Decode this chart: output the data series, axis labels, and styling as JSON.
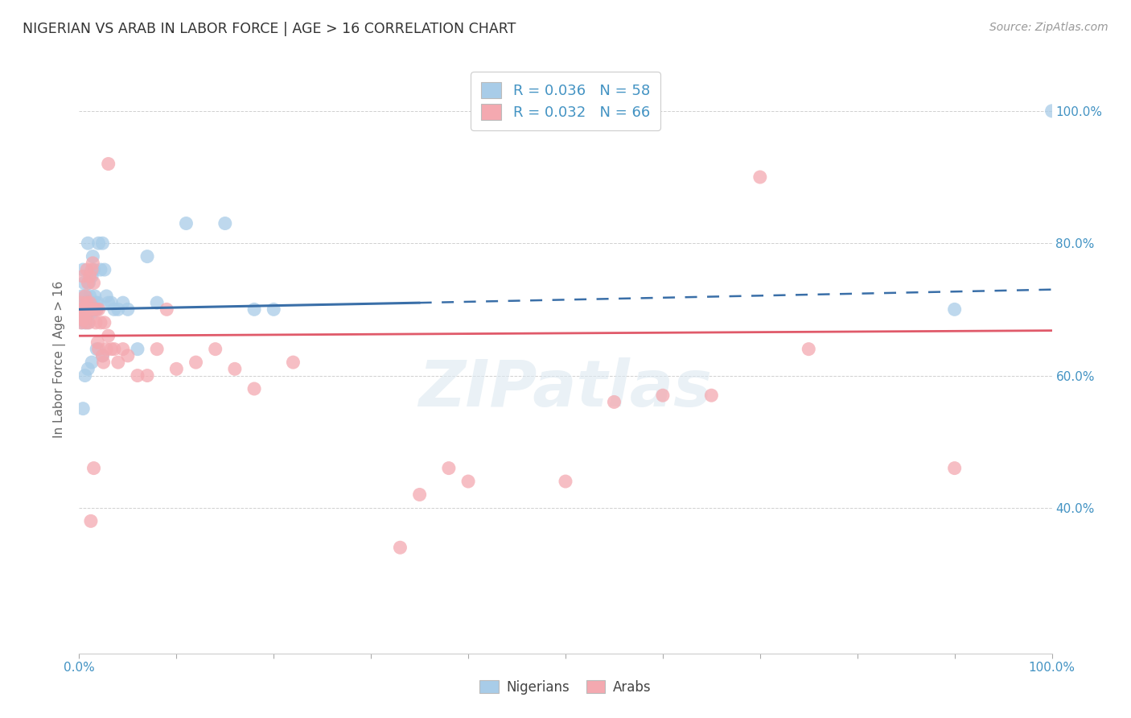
{
  "title": "NIGERIAN VS ARAB IN LABOR FORCE | AGE > 16 CORRELATION CHART",
  "source": "Source: ZipAtlas.com",
  "ylabel": "In Labor Force | Age > 16",
  "watermark": "ZIPatlas",
  "legend_label1": "R = 0.036   N = 58",
  "legend_label2": "R = 0.032   N = 66",
  "legend_name1": "Nigerians",
  "legend_name2": "Arabs",
  "blue_color": "#a8cce8",
  "pink_color": "#f4a9b0",
  "blue_line_color": "#3a6fa8",
  "pink_line_color": "#e05a6a",
  "right_tick_color": "#4393c3",
  "xmin": 0.0,
  "xmax": 1.0,
  "ymin": 0.18,
  "ymax": 1.07,
  "yticks": [
    0.4,
    0.6,
    0.8,
    1.0
  ],
  "ytick_labels": [
    "40.0%",
    "60.0%",
    "80.0%",
    "100.0%"
  ],
  "nig_trend_x0": 0.0,
  "nig_trend_x1": 0.35,
  "nig_trend_x2": 1.0,
  "nig_trend_y0": 0.7,
  "nig_trend_y1": 0.71,
  "nig_trend_y2": 0.73,
  "arab_trend_x0": 0.0,
  "arab_trend_x1": 1.0,
  "arab_trend_y0": 0.66,
  "arab_trend_y1": 0.668,
  "background_color": "#ffffff",
  "grid_color": "#d0d0d0",
  "nigerian_x": [
    0.001,
    0.002,
    0.002,
    0.003,
    0.003,
    0.004,
    0.004,
    0.005,
    0.005,
    0.006,
    0.006,
    0.007,
    0.007,
    0.008,
    0.008,
    0.009,
    0.009,
    0.01,
    0.01,
    0.011,
    0.011,
    0.012,
    0.012,
    0.013,
    0.013,
    0.014,
    0.014,
    0.015,
    0.016,
    0.017,
    0.018,
    0.019,
    0.02,
    0.022,
    0.024,
    0.026,
    0.028,
    0.03,
    0.033,
    0.036,
    0.04,
    0.045,
    0.05,
    0.06,
    0.07,
    0.08,
    0.11,
    0.15,
    0.18,
    0.2,
    0.024,
    0.018,
    0.013,
    0.009,
    0.006,
    0.004,
    0.9,
    1.0
  ],
  "nigerian_y": [
    0.7,
    0.71,
    0.695,
    0.72,
    0.68,
    0.76,
    0.695,
    0.74,
    0.7,
    0.71,
    0.68,
    0.72,
    0.7,
    0.71,
    0.695,
    0.8,
    0.68,
    0.74,
    0.7,
    0.72,
    0.695,
    0.71,
    0.7,
    0.75,
    0.695,
    0.78,
    0.7,
    0.76,
    0.72,
    0.71,
    0.7,
    0.71,
    0.8,
    0.76,
    0.8,
    0.76,
    0.72,
    0.71,
    0.71,
    0.7,
    0.7,
    0.71,
    0.7,
    0.64,
    0.78,
    0.71,
    0.83,
    0.83,
    0.7,
    0.7,
    0.63,
    0.64,
    0.62,
    0.61,
    0.6,
    0.55,
    0.7,
    1.0
  ],
  "arab_x": [
    0.001,
    0.002,
    0.002,
    0.003,
    0.003,
    0.004,
    0.004,
    0.005,
    0.005,
    0.006,
    0.006,
    0.007,
    0.007,
    0.008,
    0.008,
    0.009,
    0.009,
    0.01,
    0.01,
    0.011,
    0.011,
    0.012,
    0.013,
    0.014,
    0.015,
    0.016,
    0.017,
    0.018,
    0.019,
    0.02,
    0.022,
    0.024,
    0.026,
    0.028,
    0.03,
    0.033,
    0.036,
    0.04,
    0.045,
    0.05,
    0.06,
    0.07,
    0.08,
    0.09,
    0.1,
    0.12,
    0.14,
    0.16,
    0.18,
    0.22,
    0.03,
    0.025,
    0.02,
    0.015,
    0.012,
    0.6,
    0.65,
    0.7,
    0.75,
    0.9,
    0.35,
    0.4,
    0.5,
    0.55,
    0.38,
    0.33
  ],
  "arab_y": [
    0.7,
    0.68,
    0.71,
    0.695,
    0.685,
    0.7,
    0.75,
    0.695,
    0.685,
    0.7,
    0.72,
    0.7,
    0.68,
    0.76,
    0.71,
    0.695,
    0.74,
    0.68,
    0.7,
    0.75,
    0.71,
    0.7,
    0.76,
    0.77,
    0.74,
    0.7,
    0.68,
    0.7,
    0.65,
    0.7,
    0.68,
    0.63,
    0.68,
    0.64,
    0.66,
    0.64,
    0.64,
    0.62,
    0.64,
    0.63,
    0.6,
    0.6,
    0.64,
    0.7,
    0.61,
    0.62,
    0.64,
    0.61,
    0.58,
    0.62,
    0.92,
    0.62,
    0.64,
    0.46,
    0.38,
    0.57,
    0.57,
    0.9,
    0.64,
    0.46,
    0.42,
    0.44,
    0.44,
    0.56,
    0.46,
    0.34
  ]
}
